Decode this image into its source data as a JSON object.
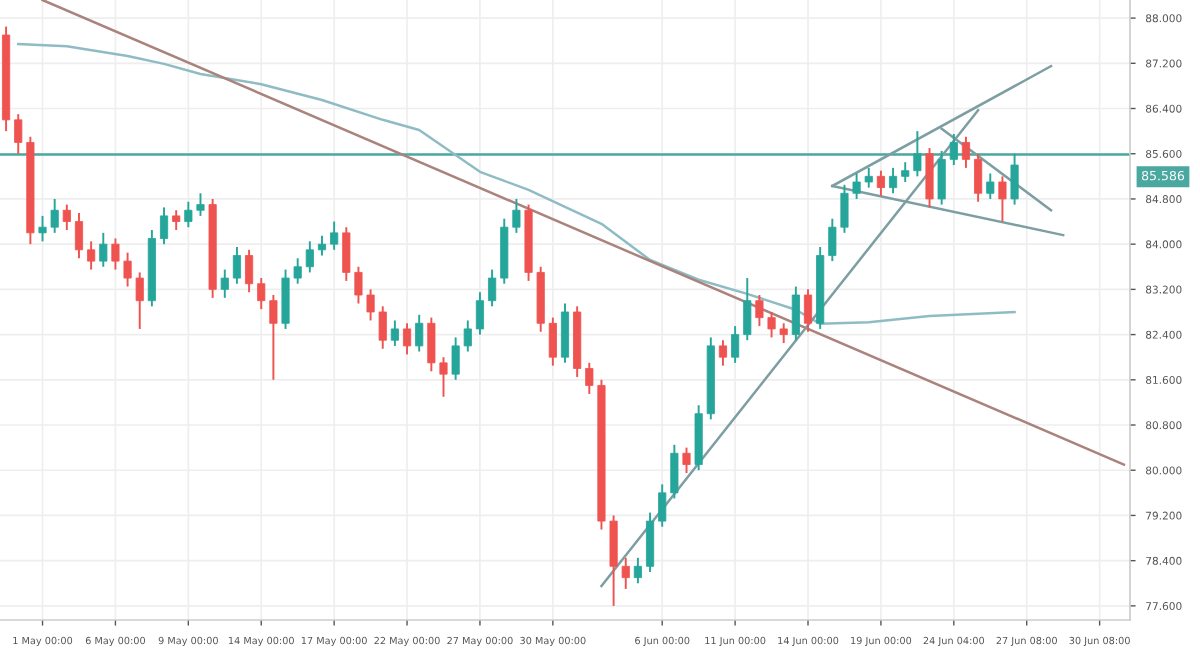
{
  "chart_data": {
    "type": "candlestick",
    "categories": [
      null,
      null,
      null,
      "1 May 00:00",
      null,
      null,
      null,
      null,
      null,
      "6 May 00:00",
      null,
      null,
      null,
      null,
      null,
      "9 May 00:00",
      null,
      null,
      null,
      null,
      null,
      "14 May 00:00",
      null,
      null,
      null,
      null,
      null,
      "17 May 00:00",
      null,
      null,
      null,
      null,
      null,
      "22 May 00:00",
      null,
      null,
      null,
      null,
      null,
      "27 May 00:00",
      null,
      null,
      null,
      null,
      null,
      "30 May 00:00",
      null,
      null,
      null,
      null,
      null,
      null,
      null,
      null,
      "6 Jun 00:00",
      null,
      null,
      null,
      null,
      null,
      "11 Jun 00:00",
      null,
      null,
      null,
      null,
      null,
      "14 Jun 00:00",
      null,
      null,
      null,
      null,
      null,
      "19 Jun 00:00",
      null,
      null,
      null,
      null,
      null,
      "24 Jun 04:00",
      null,
      null,
      null,
      null,
      null,
      "27 Jun 08:00",
      null,
      null,
      null,
      null,
      null,
      "30 Jun 08:00",
      null,
      null
    ],
    "ohlc": [
      [
        87.7,
        87.85,
        86.0,
        86.2
      ],
      [
        86.2,
        86.3,
        85.6,
        85.8
      ],
      [
        85.8,
        85.9,
        84.0,
        84.2
      ],
      [
        84.2,
        84.5,
        84.05,
        84.3
      ],
      [
        84.3,
        84.8,
        84.2,
        84.6
      ],
      [
        84.6,
        84.7,
        84.25,
        84.4
      ],
      [
        84.4,
        84.55,
        83.75,
        83.9
      ],
      [
        83.9,
        84.05,
        83.55,
        83.7
      ],
      [
        83.7,
        84.2,
        83.6,
        84.0
      ],
      [
        84.0,
        84.1,
        83.55,
        83.7
      ],
      [
        83.7,
        83.85,
        83.25,
        83.4
      ],
      [
        83.4,
        83.5,
        82.5,
        83.0
      ],
      [
        83.0,
        84.25,
        82.9,
        84.1
      ],
      [
        84.1,
        84.65,
        84.0,
        84.5
      ],
      [
        84.5,
        84.6,
        84.25,
        84.4
      ],
      [
        84.4,
        84.75,
        84.3,
        84.6
      ],
      [
        84.6,
        84.9,
        84.5,
        84.7
      ],
      [
        84.7,
        84.8,
        83.05,
        83.2
      ],
      [
        83.2,
        83.55,
        83.05,
        83.4
      ],
      [
        83.4,
        83.95,
        83.3,
        83.8
      ],
      [
        83.8,
        83.9,
        83.15,
        83.3
      ],
      [
        83.3,
        83.4,
        82.85,
        83.0
      ],
      [
        83.0,
        83.1,
        81.6,
        82.6
      ],
      [
        82.6,
        83.55,
        82.5,
        83.4
      ],
      [
        83.4,
        83.75,
        83.3,
        83.6
      ],
      [
        83.6,
        84.05,
        83.5,
        83.9
      ],
      [
        83.9,
        84.15,
        83.8,
        84.0
      ],
      [
        84.0,
        84.4,
        83.9,
        84.2
      ],
      [
        84.2,
        84.3,
        83.35,
        83.5
      ],
      [
        83.5,
        83.6,
        82.95,
        83.1
      ],
      [
        83.1,
        83.2,
        82.65,
        82.8
      ],
      [
        82.8,
        82.9,
        82.15,
        82.3
      ],
      [
        82.3,
        82.65,
        82.2,
        82.5
      ],
      [
        82.5,
        82.6,
        82.05,
        82.2
      ],
      [
        82.2,
        82.75,
        82.1,
        82.6
      ],
      [
        82.6,
        82.7,
        81.75,
        81.9
      ],
      [
        81.9,
        82.0,
        81.3,
        81.7
      ],
      [
        81.7,
        82.35,
        81.6,
        82.2
      ],
      [
        82.2,
        82.65,
        82.1,
        82.5
      ],
      [
        82.5,
        83.15,
        82.4,
        83.0
      ],
      [
        83.0,
        83.55,
        82.9,
        83.4
      ],
      [
        83.4,
        84.45,
        83.3,
        84.3
      ],
      [
        84.3,
        84.8,
        84.2,
        84.6
      ],
      [
        84.6,
        84.7,
        83.35,
        83.5
      ],
      [
        83.5,
        83.6,
        82.45,
        82.6
      ],
      [
        82.6,
        82.7,
        81.85,
        82.0
      ],
      [
        82.0,
        82.95,
        81.9,
        82.8
      ],
      [
        82.8,
        82.9,
        81.65,
        81.8
      ],
      [
        81.8,
        81.9,
        81.35,
        81.5
      ],
      [
        81.5,
        81.6,
        78.95,
        79.1
      ],
      [
        79.1,
        79.2,
        77.6,
        78.3
      ],
      [
        78.3,
        78.45,
        77.9,
        78.1
      ],
      [
        78.1,
        78.45,
        78.0,
        78.3
      ],
      [
        78.3,
        79.25,
        78.2,
        79.1
      ],
      [
        79.1,
        79.75,
        79.0,
        79.6
      ],
      [
        79.6,
        80.45,
        79.5,
        80.3
      ],
      [
        80.3,
        80.4,
        79.95,
        80.1
      ],
      [
        80.1,
        81.15,
        80.0,
        81.0
      ],
      [
        81.0,
        82.35,
        80.9,
        82.2
      ],
      [
        82.2,
        82.3,
        81.85,
        82.0
      ],
      [
        82.0,
        82.55,
        81.9,
        82.4
      ],
      [
        82.4,
        83.4,
        82.3,
        83.0
      ],
      [
        83.0,
        83.1,
        82.55,
        82.7
      ],
      [
        82.7,
        82.8,
        82.35,
        82.5
      ],
      [
        82.5,
        82.6,
        82.25,
        82.4
      ],
      [
        82.4,
        83.25,
        82.3,
        83.1
      ],
      [
        83.1,
        83.2,
        82.45,
        82.6
      ],
      [
        82.6,
        83.95,
        82.5,
        83.8
      ],
      [
        83.8,
        84.45,
        83.7,
        84.3
      ],
      [
        84.3,
        85.05,
        84.2,
        84.9
      ],
      [
        84.9,
        85.25,
        84.8,
        85.1
      ],
      [
        85.1,
        85.35,
        85.0,
        85.2
      ],
      [
        85.2,
        85.3,
        84.85,
        85.0
      ],
      [
        85.0,
        85.35,
        84.9,
        85.2
      ],
      [
        85.2,
        85.45,
        85.1,
        85.3
      ],
      [
        85.3,
        86.0,
        85.2,
        85.6
      ],
      [
        85.6,
        85.7,
        84.65,
        84.8
      ],
      [
        84.8,
        85.65,
        84.7,
        85.5
      ],
      [
        85.5,
        85.95,
        85.4,
        85.8
      ],
      [
        85.8,
        85.9,
        85.35,
        85.5
      ],
      [
        85.5,
        85.6,
        84.75,
        84.9
      ],
      [
        84.9,
        85.25,
        84.8,
        85.1
      ],
      [
        85.1,
        85.2,
        84.4,
        84.8
      ],
      [
        84.8,
        85.6,
        84.7,
        85.4
      ],
      null,
      null,
      null,
      null,
      null,
      null,
      null,
      null,
      null
    ],
    "colors": [
      "#ef5350",
      "#ef5350",
      "#ef5350",
      "#26a69a",
      "#26a69a",
      "#ef5350",
      "#ef5350",
      "#ef5350",
      "#26a69a",
      "#ef5350",
      "#ef5350",
      "#ef5350",
      "#26a69a",
      "#26a69a",
      "#ef5350",
      "#26a69a",
      "#26a69a",
      "#ef5350",
      "#26a69a",
      "#26a69a",
      "#ef5350",
      "#ef5350",
      "#ef5350",
      "#26a69a",
      "#26a69a",
      "#26a69a",
      "#26a69a",
      "#26a69a",
      "#ef5350",
      "#ef5350",
      "#ef5350",
      "#ef5350",
      "#26a69a",
      "#ef5350",
      "#26a69a",
      "#ef5350",
      "#ef5350",
      "#26a69a",
      "#26a69a",
      "#26a69a",
      "#26a69a",
      "#26a69a",
      "#26a69a",
      "#ef5350",
      "#ef5350",
      "#ef5350",
      "#26a69a",
      "#ef5350",
      "#ef5350",
      "#ef5350",
      "#ef5350",
      "#ef5350",
      "#26a69a",
      "#26a69a",
      "#26a69a",
      "#26a69a",
      "#ef5350",
      "#26a69a",
      "#26a69a",
      "#ef5350",
      "#26a69a",
      "#26a69a",
      "#ef5350",
      "#ef5350",
      "#ef5350",
      "#26a69a",
      "#ef5350",
      "#26a69a",
      "#26a69a",
      "#26a69a",
      "#26a69a",
      "#26a69a",
      "#ef5350",
      "#26a69a",
      "#26a69a",
      "#26a69a",
      "#ef5350",
      "#26a69a",
      "#26a69a",
      "#ef5350",
      "#ef5350",
      "#26a69a",
      "#ef5350",
      "#26a69a",
      null,
      null,
      null,
      null,
      null,
      null,
      null,
      null,
      null
    ],
    "series": [
      {
        "type": "line",
        "color": "#8fbcc4",
        "values": [
          null,
          87.54,
          null,
          null,
          null,
          87.5,
          null,
          null,
          null,
          null,
          87.33,
          null,
          null,
          87.19,
          null,
          null,
          87.01,
          null,
          null,
          null,
          null,
          86.83,
          null,
          null,
          null,
          null,
          86.55,
          null,
          null,
          null,
          null,
          86.2,
          null,
          null,
          86.02,
          null,
          null,
          null,
          null,
          85.28,
          null,
          null,
          null,
          84.96,
          null,
          null,
          null,
          null,
          null,
          84.36,
          null,
          null,
          null,
          83.72,
          null,
          null,
          null,
          83.37,
          null,
          null,
          null,
          83.12,
          null,
          null,
          null,
          82.84,
          null,
          82.59,
          null,
          null,
          null,
          82.62,
          null,
          null,
          null,
          null,
          82.73,
          null,
          null,
          null,
          null,
          null,
          null,
          82.8,
          null,
          null,
          null,
          null,
          null,
          null,
          null,
          null,
          null
        ]
      },
      {
        "type": "line",
        "color": "#a9837c",
        "values": [
          null,
          null,
          null,
          88.32,
          null,
          null,
          null,
          null,
          null,
          null,
          null,
          null,
          null,
          null,
          null,
          null,
          null,
          null,
          null,
          null,
          null,
          null,
          null,
          null,
          null,
          null,
          null,
          null,
          null,
          null,
          null,
          null,
          null,
          null,
          null,
          null,
          null,
          null,
          null,
          null,
          null,
          null,
          null,
          null,
          null,
          null,
          null,
          null,
          null,
          null,
          null,
          null,
          null,
          null,
          null,
          null,
          null,
          null,
          null,
          null,
          null,
          null,
          null,
          null,
          null,
          null,
          null,
          null,
          null,
          null,
          null,
          null,
          null,
          null,
          null,
          null,
          null,
          null,
          null,
          null,
          null,
          null,
          null,
          null,
          null,
          null,
          null,
          null,
          null,
          null,
          null,
          null,
          80.1
        ]
      },
      {
        "type": "line",
        "color": "#7d9ea2",
        "values": [
          null,
          null,
          null,
          null,
          null,
          null,
          null,
          null,
          null,
          null,
          null,
          null,
          null,
          null,
          null,
          null,
          null,
          null,
          null,
          null,
          null,
          null,
          null,
          null,
          null,
          null,
          null,
          null,
          null,
          null,
          null,
          null,
          null,
          null,
          null,
          null,
          null,
          null,
          null,
          null,
          null,
          null,
          null,
          null,
          null,
          null,
          null,
          null,
          null,
          77.95,
          null,
          null,
          null,
          null,
          null,
          null,
          null,
          null,
          null,
          null,
          null,
          null,
          null,
          null,
          null,
          null,
          null,
          null,
          null,
          null,
          null,
          null,
          null,
          null,
          null,
          null,
          null,
          null,
          null,
          null,
          86.37,
          null,
          null,
          null,
          null,
          null,
          null,
          null,
          null,
          null,
          null,
          null,
          null
        ]
      },
      {
        "type": "line",
        "color": "#7d9ea2",
        "values": [
          null,
          null,
          null,
          null,
          null,
          null,
          null,
          null,
          null,
          null,
          null,
          null,
          null,
          null,
          null,
          null,
          null,
          null,
          null,
          null,
          null,
          null,
          null,
          null,
          null,
          null,
          null,
          null,
          null,
          null,
          null,
          null,
          null,
          null,
          null,
          null,
          null,
          null,
          null,
          null,
          null,
          null,
          null,
          null,
          null,
          null,
          null,
          null,
          null,
          null,
          null,
          null,
          null,
          null,
          null,
          null,
          null,
          null,
          null,
          null,
          null,
          null,
          null,
          null,
          null,
          null,
          null,
          null,
          85.03,
          null,
          null,
          null,
          null,
          null,
          null,
          null,
          null,
          null,
          null,
          null,
          null,
          null,
          null,
          null,
          null,
          null,
          87.15,
          null,
          null,
          null,
          null,
          null,
          null
        ]
      },
      {
        "type": "line",
        "color": "#7d9ea2",
        "values": [
          null,
          null,
          null,
          null,
          null,
          null,
          null,
          null,
          null,
          null,
          null,
          null,
          null,
          null,
          null,
          null,
          null,
          null,
          null,
          null,
          null,
          null,
          null,
          null,
          null,
          null,
          null,
          null,
          null,
          null,
          null,
          null,
          null,
          null,
          null,
          null,
          null,
          null,
          null,
          null,
          null,
          null,
          null,
          null,
          null,
          null,
          null,
          null,
          null,
          null,
          null,
          null,
          null,
          null,
          null,
          null,
          null,
          null,
          null,
          null,
          null,
          null,
          null,
          null,
          null,
          null,
          null,
          null,
          85.03,
          null,
          null,
          null,
          null,
          null,
          null,
          null,
          null,
          null,
          null,
          null,
          null,
          null,
          null,
          null,
          null,
          null,
          null,
          84.16,
          null,
          null,
          null,
          null,
          null
        ]
      },
      {
        "type": "line",
        "color": "#7d9ea2",
        "values": [
          null,
          null,
          null,
          null,
          null,
          null,
          null,
          null,
          null,
          null,
          null,
          null,
          null,
          null,
          null,
          null,
          null,
          null,
          null,
          null,
          null,
          null,
          null,
          null,
          null,
          null,
          null,
          null,
          null,
          null,
          null,
          null,
          null,
          null,
          null,
          null,
          null,
          null,
          null,
          null,
          null,
          null,
          null,
          null,
          null,
          null,
          null,
          null,
          null,
          null,
          null,
          null,
          null,
          null,
          null,
          null,
          null,
          null,
          null,
          null,
          null,
          null,
          null,
          null,
          null,
          null,
          null,
          null,
          null,
          null,
          null,
          null,
          null,
          null,
          null,
          null,
          null,
          86.04,
          null,
          null,
          null,
          null,
          null,
          null,
          null,
          null,
          84.6,
          null,
          null,
          null,
          null,
          null,
          null
        ]
      }
    ],
    "ref_lines": [
      {
        "axis": "y",
        "value": 85.586,
        "label": "85.586",
        "color": "#4aa8a0"
      }
    ],
    "ylim": [
      77.35,
      88.32
    ],
    "yticks": [
      {
        "value": 77.6,
        "label": "77.600"
      },
      {
        "value": 78.4,
        "label": "78.400"
      },
      {
        "value": 79.2,
        "label": "79.200"
      },
      {
        "value": 80.0,
        "label": "80.000"
      },
      {
        "value": 80.8,
        "label": "80.800"
      },
      {
        "value": 81.6,
        "label": "81.600"
      },
      {
        "value": 82.4,
        "label": "82.400"
      },
      {
        "value": 83.2,
        "label": "83.200"
      },
      {
        "value": 84.0,
        "label": "84.000"
      },
      {
        "value": 84.8,
        "label": "84.800"
      },
      {
        "value": 85.6,
        "label": "85.600"
      },
      {
        "value": 86.4,
        "label": "86.400"
      },
      {
        "value": 87.2,
        "label": "87.200"
      },
      {
        "value": 88.0,
        "label": "88.000"
      }
    ],
    "grid": true
  }
}
